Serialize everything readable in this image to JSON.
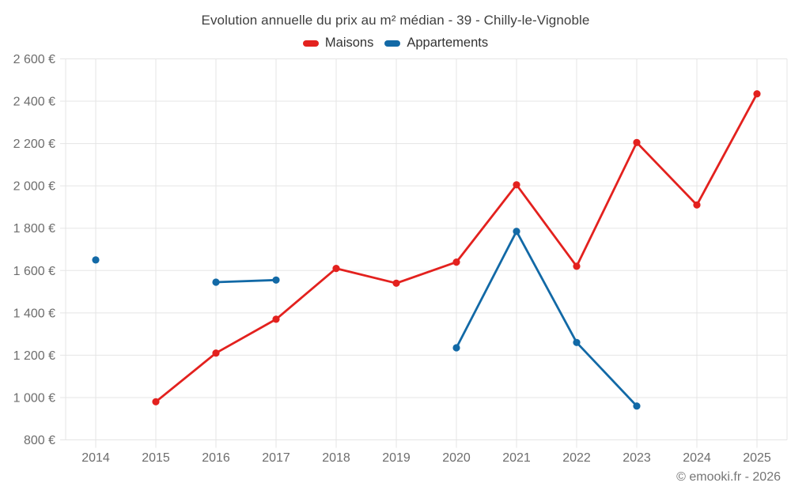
{
  "title": "Evolution annuelle du prix au m² médian - 39 - Chilly-le-Vignoble",
  "legend": {
    "items": [
      {
        "label": "Maisons",
        "color": "#e3211e"
      },
      {
        "label": "Appartements",
        "color": "#1269a6"
      }
    ]
  },
  "footer": {
    "credit": "© emooki.fr - 2026"
  },
  "chart_data": {
    "type": "line",
    "title": "Evolution annuelle du prix au m² médian - 39 - Chilly-le-Vignoble",
    "x": [
      2014,
      2015,
      2016,
      2017,
      2018,
      2019,
      2020,
      2021,
      2022,
      2023,
      2024,
      2025
    ],
    "series": [
      {
        "name": "Maisons",
        "color": "#e3211e",
        "values": [
          null,
          980,
          1210,
          1370,
          1610,
          1540,
          1640,
          2005,
          1620,
          2205,
          1910,
          2435
        ]
      },
      {
        "name": "Appartements",
        "color": "#1269a6",
        "values": [
          1650,
          null,
          1545,
          1555,
          null,
          null,
          1235,
          1785,
          1260,
          960,
          null,
          null
        ]
      }
    ],
    "ylim": [
      800,
      2600
    ],
    "ytick_step": 200,
    "ytick_labels": [
      "800 €",
      "1 000 €",
      "1 200 €",
      "1 400 €",
      "1 600 €",
      "1 800 €",
      "2 000 €",
      "2 200 €",
      "2 400 €",
      "2 600 €"
    ],
    "xlabel": "",
    "ylabel": "",
    "grid": true,
    "legend_position": "top",
    "grid_color": "#e5e5e5",
    "axis_label_color": "#6d6d6d"
  }
}
